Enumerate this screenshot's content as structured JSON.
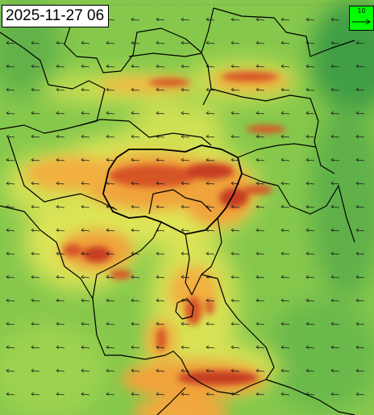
{
  "map": {
    "timestamp": "2025-11-27 06",
    "wind_legend": {
      "value_label": "10",
      "color": "#00ff00"
    },
    "field_colors": {
      "low": "#4caa4a",
      "mid_low": "#8bd04e",
      "mid": "#e8ea55",
      "mid_high": "#f2a43a",
      "high": "#d65425",
      "peak": "#a8261a"
    },
    "wind_arrow_direction": "westward"
  }
}
